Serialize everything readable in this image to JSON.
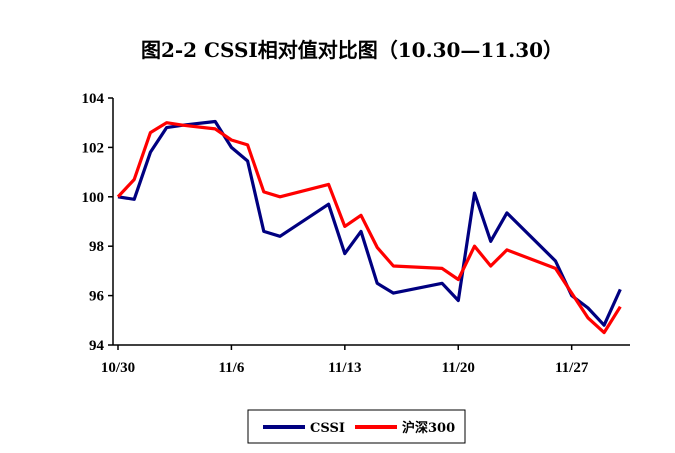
{
  "chart_data": {
    "type": "line",
    "title": "图2-2 CSSI相对值对比图（10.30—11.30）",
    "ylim": [
      94,
      104
    ],
    "yticks": [
      "94",
      "96",
      "98",
      "100",
      "102",
      "104"
    ],
    "xticks": [
      {
        "label": "10/30",
        "x": 0
      },
      {
        "label": "11/6",
        "x": 7
      },
      {
        "label": "11/13",
        "x": 14
      },
      {
        "label": "11/20",
        "x": 21
      },
      {
        "label": "11/27",
        "x": 28
      }
    ],
    "xlim": [
      0,
      31.6
    ],
    "grid": false,
    "legend_position": "bottom-center",
    "series": [
      {
        "name": "CSSI",
        "color": "#000080",
        "points": [
          [
            0,
            100.0
          ],
          [
            1,
            99.9
          ],
          [
            2,
            101.8
          ],
          [
            3,
            102.8
          ],
          [
            4,
            102.9
          ],
          [
            6,
            103.05
          ],
          [
            7,
            102.0
          ],
          [
            8,
            101.45
          ],
          [
            9,
            98.6
          ],
          [
            10,
            98.4
          ],
          [
            13,
            99.7
          ],
          [
            14,
            97.7
          ],
          [
            15,
            98.6
          ],
          [
            16,
            96.5
          ],
          [
            17,
            96.1
          ],
          [
            20,
            96.5
          ],
          [
            21,
            95.8
          ],
          [
            22,
            100.15
          ],
          [
            23,
            98.2
          ],
          [
            24,
            99.35
          ],
          [
            27,
            97.4
          ],
          [
            28,
            96.0
          ],
          [
            29,
            95.5
          ],
          [
            30,
            94.8
          ],
          [
            31,
            96.25
          ]
        ]
      },
      {
        "name": "沪深300",
        "color": "#ff0000",
        "points": [
          [
            0,
            100.0
          ],
          [
            1,
            100.7
          ],
          [
            2,
            102.6
          ],
          [
            3,
            103.0
          ],
          [
            4,
            102.9
          ],
          [
            6,
            102.75
          ],
          [
            7,
            102.3
          ],
          [
            8,
            102.1
          ],
          [
            9,
            100.2
          ],
          [
            10,
            100.0
          ],
          [
            13,
            100.5
          ],
          [
            14,
            98.8
          ],
          [
            15,
            99.25
          ],
          [
            16,
            97.95
          ],
          [
            17,
            97.2
          ],
          [
            20,
            97.1
          ],
          [
            21,
            96.65
          ],
          [
            22,
            98.0
          ],
          [
            23,
            97.2
          ],
          [
            24,
            97.85
          ],
          [
            27,
            97.1
          ],
          [
            28,
            96.1
          ],
          [
            29,
            95.1
          ],
          [
            30,
            94.5
          ],
          [
            31,
            95.55
          ]
        ]
      }
    ]
  }
}
